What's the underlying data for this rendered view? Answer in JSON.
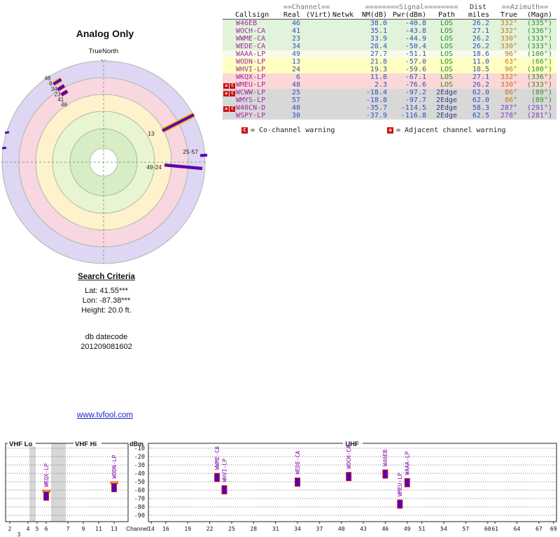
{
  "radar": {
    "title": "Analog Only",
    "north_label": "TrueNorth",
    "north_marker": "N",
    "cluster_labels": [
      "48",
      "6",
      "34",
      "23",
      "41",
      "46"
    ],
    "spoke_labels": {
      "ch13": "13",
      "ch2557": "25·57",
      "ch4924": "49·24"
    }
  },
  "table": {
    "h1_channel": "==Channel==",
    "h1_signal": "========Signal========",
    "h1_dist": "Dist",
    "h1_azimuth": "==Azimuth==",
    "h2": {
      "callsign": "Callsign",
      "real": "Real",
      "virt": "(Virt)",
      "netwk": "Netwk",
      "nm": "NM(dB)",
      "pwr": "Pwr(dBm)",
      "path": "Path",
      "miles": "miles",
      "true": "True",
      "magn": "(Magn)"
    }
  },
  "stations": [
    {
      "callsign": "W46EB",
      "real": "46",
      "virt": "",
      "netwk": "",
      "nm": "38.0",
      "pwr": "-40.8",
      "path": "LOS",
      "miles": "26.2",
      "true_az": "332°",
      "magn_az": "(335°)",
      "tier": "green",
      "viol": false,
      "flags": []
    },
    {
      "callsign": "WOCH-CA",
      "real": "41",
      "virt": "",
      "netwk": "",
      "nm": "35.1",
      "pwr": "-43.8",
      "path": "LOS",
      "miles": "27.1",
      "true_az": "332°",
      "magn_az": "(336°)",
      "tier": "green",
      "viol": false,
      "flags": []
    },
    {
      "callsign": "WWME-CA",
      "real": "23",
      "virt": "",
      "netwk": "",
      "nm": "33.9",
      "pwr": "-44.9",
      "path": "LOS",
      "miles": "26.2",
      "true_az": "330°",
      "magn_az": "(333°)",
      "tier": "green",
      "viol": false,
      "flags": []
    },
    {
      "callsign": "WEDE-CA",
      "real": "34",
      "virt": "",
      "netwk": "",
      "nm": "28.4",
      "pwr": "-50.4",
      "path": "LOS",
      "miles": "26.2",
      "true_az": "330°",
      "magn_az": "(333°)",
      "tier": "green",
      "viol": false,
      "flags": []
    },
    {
      "callsign": "WAAA-LP",
      "real": "49",
      "virt": "",
      "netwk": "",
      "nm": "27.7",
      "pwr": "-51.1",
      "path": "LOS",
      "miles": "18.6",
      "true_az": "96°",
      "magn_az": "(100°)",
      "tier": "pale",
      "viol": false,
      "flags": []
    },
    {
      "callsign": "WODN-LP",
      "real": "13",
      "virt": "",
      "netwk": "",
      "nm": "21.8",
      "pwr": "-57.0",
      "path": "LOS",
      "miles": "11.0",
      "true_az": "63°",
      "magn_az": "(66°)",
      "tier": "yellow",
      "viol": false,
      "flags": []
    },
    {
      "callsign": "WHVI-LP",
      "real": "24",
      "virt": "",
      "netwk": "",
      "nm": "19.3",
      "pwr": "-59.6",
      "path": "LOS",
      "miles": "18.5",
      "true_az": "96°",
      "magn_az": "(100°)",
      "tier": "yellow",
      "viol": false,
      "flags": []
    },
    {
      "callsign": "WKQX-LP",
      "real": "6",
      "virt": "",
      "netwk": "",
      "nm": "11.8",
      "pwr": "-67.1",
      "path": "LOS",
      "miles": "27.1",
      "true_az": "332°",
      "magn_az": "(336°)",
      "tier": "pink",
      "viol": false,
      "flags": []
    },
    {
      "callsign": "WMEU-LP",
      "real": "48",
      "virt": "",
      "netwk": "",
      "nm": "2.3",
      "pwr": "-76.6",
      "path": "LOS",
      "miles": "26.2",
      "true_az": "330°",
      "magn_az": "(333°)",
      "tier": "pink",
      "viol": false,
      "flags": [
        "a",
        "C"
      ]
    },
    {
      "callsign": "WCWW-LP",
      "real": "25",
      "virt": "",
      "netwk": "",
      "nm": "-18.4",
      "pwr": "-97.2",
      "path": "2Edge",
      "miles": "62.0",
      "true_az": "86°",
      "magn_az": "(89°)",
      "tier": "gray",
      "viol": false,
      "flags": [
        "a",
        "C"
      ]
    },
    {
      "callsign": "WMYS-LP",
      "real": "57",
      "virt": "",
      "netwk": "",
      "nm": "-18.8",
      "pwr": "-97.7",
      "path": "2Edge",
      "miles": "62.0",
      "true_az": "86°",
      "magn_az": "(89°)",
      "tier": "gray",
      "viol": false,
      "flags": []
    },
    {
      "callsign": "W40CN-D",
      "real": "40",
      "virt": "",
      "netwk": "",
      "nm": "-35.7",
      "pwr": "-114.5",
      "path": "2Edge",
      "miles": "58.3",
      "true_az": "287°",
      "magn_az": "(291°)",
      "tier": "gray",
      "viol": true,
      "flags": [
        "a",
        "C"
      ]
    },
    {
      "callsign": "WSPY-LP",
      "real": "30",
      "virt": "",
      "netwk": "",
      "nm": "-37.9",
      "pwr": "-116.8",
      "path": "2Edge",
      "miles": "62.5",
      "true_az": "278°",
      "magn_az": "(281°)",
      "tier": "gray",
      "viol": true,
      "flags": []
    }
  ],
  "legend": {
    "co_symbol": "C",
    "co_text": "= Co-channel warning",
    "adj_symbol": "a",
    "adj_text": "= Adjacent channel warning"
  },
  "search": {
    "title": "Search Criteria",
    "lat": "Lat: 41.55***",
    "lon": "Lon: -87.38***",
    "height": "Height: 20.0 ft.",
    "datecode_label": "db datecode",
    "datecode": "201209081602"
  },
  "link_text": "www.tvfool.com",
  "chart_data": [
    {
      "type": "radar",
      "title": "Analog Only",
      "note": "channel markers plotted by azimuth (true) vs signal strength; center = strongest",
      "points": [
        {
          "label": "46",
          "azimuth": 332,
          "nm_db": 38.0
        },
        {
          "label": "41",
          "azimuth": 332,
          "nm_db": 35.1
        },
        {
          "label": "23",
          "azimuth": 330,
          "nm_db": 33.9
        },
        {
          "label": "34",
          "azimuth": 330,
          "nm_db": 28.4
        },
        {
          "label": "49",
          "azimuth": 96,
          "nm_db": 27.7
        },
        {
          "label": "13",
          "azimuth": 63,
          "nm_db": 21.8
        },
        {
          "label": "24",
          "azimuth": 96,
          "nm_db": 19.3
        },
        {
          "label": "6",
          "azimuth": 332,
          "nm_db": 11.8
        },
        {
          "label": "48",
          "azimuth": 330,
          "nm_db": 2.3
        },
        {
          "label": "25",
          "azimuth": 86,
          "nm_db": -18.4
        },
        {
          "label": "57",
          "azimuth": 86,
          "nm_db": -18.8
        },
        {
          "label": "40",
          "azimuth": 287,
          "nm_db": -35.7
        },
        {
          "label": "30",
          "azimuth": 278,
          "nm_db": -37.9
        }
      ]
    },
    {
      "type": "bar",
      "title": "",
      "ylabel": "dBm",
      "xlabel": "Channel",
      "ylim": [
        -90,
        0
      ],
      "sections": [
        "VHF Lo",
        "VHF Hi",
        "UHF"
      ],
      "y_ticks": [
        -10,
        -20,
        -30,
        -40,
        -50,
        -60,
        -70,
        -80,
        -90
      ],
      "x_ticks_top": [
        2,
        4,
        5,
        6,
        7,
        9,
        11,
        13,
        14,
        16,
        19,
        22,
        25,
        28,
        31,
        34,
        37,
        40,
        43,
        46,
        49,
        51,
        54,
        57,
        60,
        61,
        64,
        67,
        69
      ],
      "x_ticks_bottom": [
        3
      ],
      "bars": [
        {
          "label": "WKQX-LP",
          "channel": 6,
          "dbm": -67.1,
          "highlight": true
        },
        {
          "label": "WODN-LP",
          "channel": 13,
          "dbm": -57.0,
          "highlight": true
        },
        {
          "label": "WWME-CA",
          "channel": 23,
          "dbm": -44.9,
          "highlight": false
        },
        {
          "label": "WHVI-LP",
          "channel": 24,
          "dbm": -59.6,
          "highlight": false
        },
        {
          "label": "WEDE-CA",
          "channel": 34,
          "dbm": -50.4,
          "highlight": false
        },
        {
          "label": "WOCH-CA",
          "channel": 41,
          "dbm": -43.8,
          "highlight": false
        },
        {
          "label": "W46EB",
          "channel": 46,
          "dbm": -40.8,
          "highlight": false
        },
        {
          "label": "WMEU-LP",
          "channel": 48,
          "dbm": -76.6,
          "highlight": false
        },
        {
          "label": "WAAA-LP",
          "channel": 49,
          "dbm": -51.1,
          "highlight": false
        }
      ]
    }
  ]
}
